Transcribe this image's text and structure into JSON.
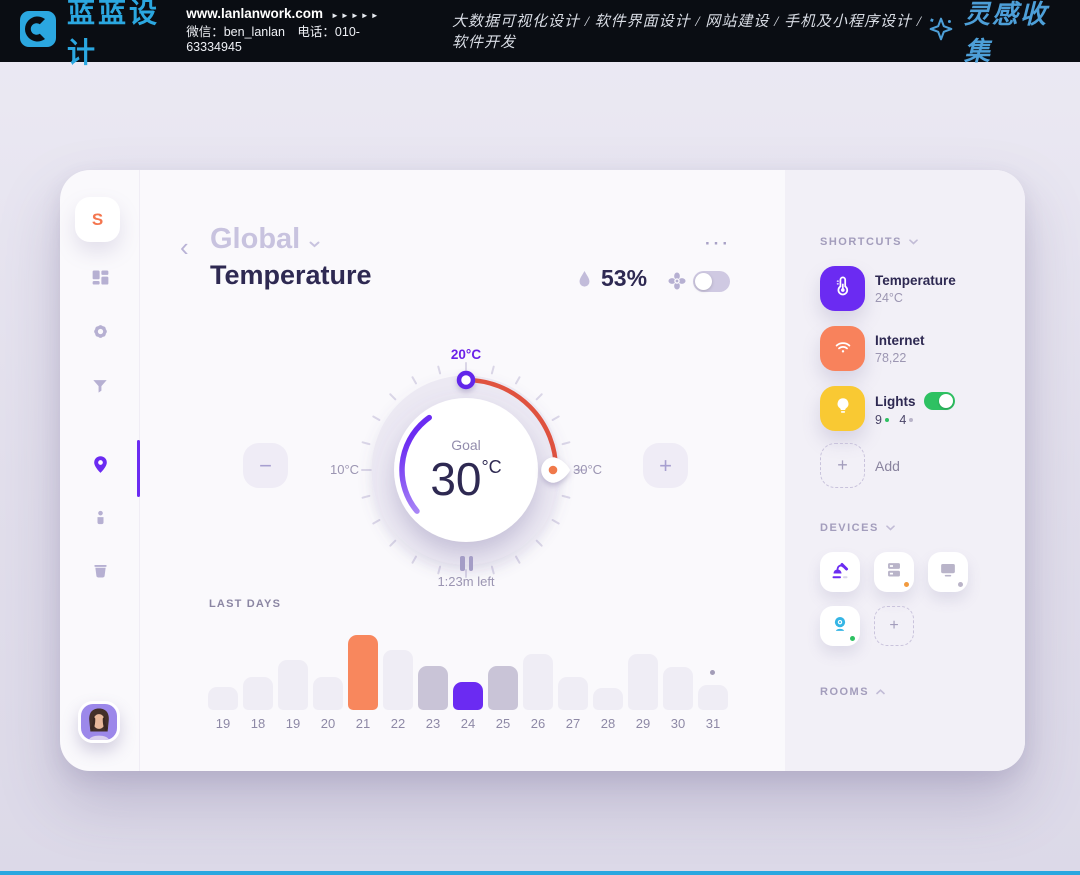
{
  "banner": {
    "logo_text": "蓝蓝设计",
    "site": "www.lanlanwork.com",
    "site_arrows": "►►►►►",
    "wechat_label": "微信：ben_lanlan",
    "phone_label": "电话：010-63334945",
    "services": "大数据可视化设计 / 软件界面设计 / 网站建设 / 手机及小程序设计 / 软件开发",
    "collection_label": "灵感收集",
    "accent_color": "#2BA7E0"
  },
  "sidebar": {
    "logo_letter": "S",
    "items": [
      "dashboard",
      "settings",
      "filter",
      "location",
      "profile",
      "trash"
    ],
    "active_item": "location",
    "active_color": "#6B2BF2"
  },
  "header": {
    "category": "Global",
    "title": "Temperature",
    "humidity": "53%",
    "fan_toggle": "off",
    "menu_icon": "···"
  },
  "dial": {
    "top_label": "20°C",
    "left_label": "10°C",
    "right_label": "30°C",
    "goal_label": "Goal",
    "goal_value": "30",
    "goal_unit": "°C",
    "time_left": "1:23m left",
    "arc_start_color": "#6B2BF2",
    "arc_end_color": "#E0523F",
    "handle_dot_color": "#F0794A"
  },
  "chart_data": {
    "type": "bar",
    "title": "LAST DAYS",
    "categories": [
      "19",
      "18",
      "19",
      "20",
      "21",
      "22",
      "23",
      "24",
      "25",
      "26",
      "27",
      "28",
      "29",
      "30",
      "31"
    ],
    "values": [
      23,
      33,
      50,
      33,
      75,
      60,
      44,
      28,
      44,
      56,
      33,
      22,
      56,
      43,
      25
    ],
    "values_note": "bar heights in px, no y-axis shown",
    "bar_styles": [
      "light",
      "light",
      "light",
      "light",
      "orange",
      "light",
      "mid",
      "purple",
      "mid",
      "light",
      "light",
      "light",
      "light",
      "light",
      "light"
    ],
    "dot_index": 14,
    "colors": {
      "light": "#EFEDF5",
      "mid": "#C9C4D7",
      "orange": "#F8875D",
      "purple": "#6B2BF2"
    },
    "xlabel": "",
    "ylabel": "",
    "legend": null,
    "grid": false
  },
  "shortcuts": {
    "heading": "SHORTCUTS",
    "items": [
      {
        "name": "Temperature",
        "value": "24°C",
        "color": "#6B2BF2",
        "icon": "thermometer"
      },
      {
        "name": "Internet",
        "value": "78,22",
        "color": "#F8825C",
        "icon": "wifi"
      },
      {
        "name": "Lights",
        "on_count": "9",
        "off_count": "4",
        "color": "#F9C933",
        "icon": "bulb",
        "toggle": "on",
        "toggle_color": "#2EC162"
      }
    ],
    "add_label": "Add"
  },
  "devices": {
    "heading": "DEVICES",
    "items": [
      {
        "icon": "lamp",
        "color": "#6B2BF2",
        "status_dot": null
      },
      {
        "icon": "server",
        "color": "#B9B4C9",
        "status_dot": "#F29A3F"
      },
      {
        "icon": "monitor",
        "color": "#B9B4C9",
        "status_dot": "#BAB4C8"
      },
      {
        "icon": "webcam",
        "color": "#35B5E5",
        "status_dot": "#2EC162"
      }
    ]
  },
  "rooms": {
    "heading": "ROOMS"
  }
}
